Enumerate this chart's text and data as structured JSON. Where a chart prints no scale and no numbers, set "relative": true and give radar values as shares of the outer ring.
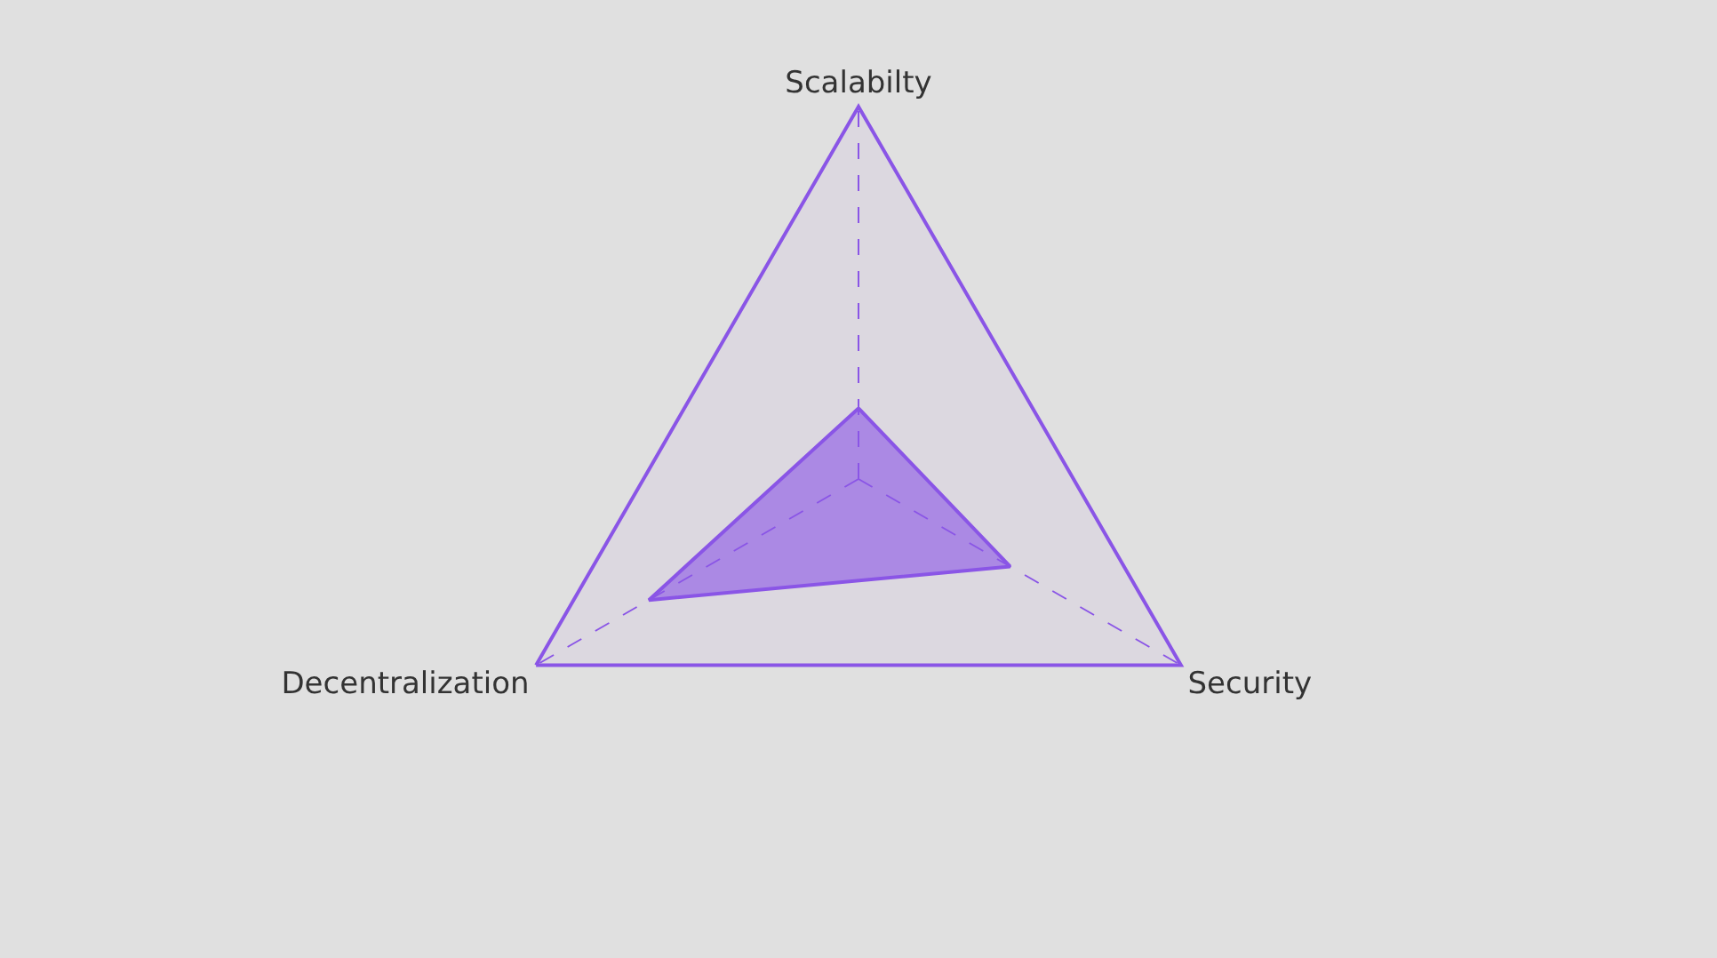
{
  "chart_data": {
    "type": "radar",
    "relative": true,
    "categories": [
      "Scalabilty",
      "Security",
      "Decentralization"
    ],
    "series": [
      {
        "color": "#8a55e6",
        "values": [
          0.19,
          0.47,
          0.65
        ]
      }
    ]
  }
}
